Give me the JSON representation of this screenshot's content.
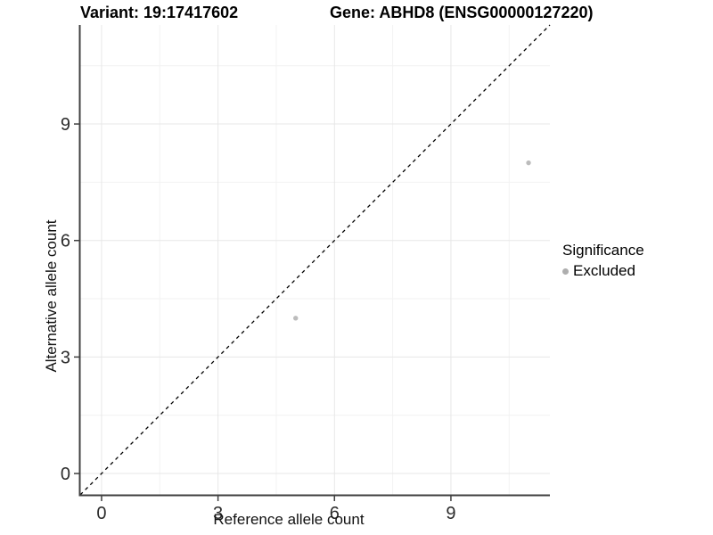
{
  "title": {
    "variant": "Variant: 19:17417602",
    "gene": "Gene: ABHD8 (ENSG00000127220)"
  },
  "legend": {
    "title": "Significance",
    "items": [
      {
        "label": "Excluded",
        "color": "#aeaeae"
      }
    ]
  },
  "chart_data": {
    "type": "scatter",
    "title": "Variant: 19:17417602 | Gene: ABHD8 (ENSG00000127220)",
    "xlabel": "Reference allele count",
    "ylabel": "Alternative allele count",
    "xlim": [
      -0.55,
      11.55
    ],
    "ylim": [
      -0.55,
      11.55
    ],
    "x_major_ticks": [
      0,
      3,
      6,
      9
    ],
    "y_major_ticks": [
      0,
      3,
      6,
      9
    ],
    "x_minor_gridlines": [
      1.5,
      4.5,
      7.5,
      10.5
    ],
    "y_minor_gridlines": [
      1.5,
      4.5,
      7.5,
      10.5
    ],
    "grid": true,
    "legend_position": "right",
    "series": [
      {
        "name": "Excluded",
        "color": "#bcbcbc",
        "points": [
          [
            5,
            4
          ],
          [
            11,
            8
          ]
        ]
      }
    ],
    "reference_line": {
      "type": "identity y=x",
      "style": "dashed",
      "color": "#000000"
    },
    "style": {
      "major_grid_color": "#e7e7e7",
      "minor_grid_color": "#f2f2f2",
      "axis_line_color": "#404040",
      "tick_color": "#404040",
      "tick_label_color": "#2b2b2b",
      "point_radius": 2.7
    }
  }
}
